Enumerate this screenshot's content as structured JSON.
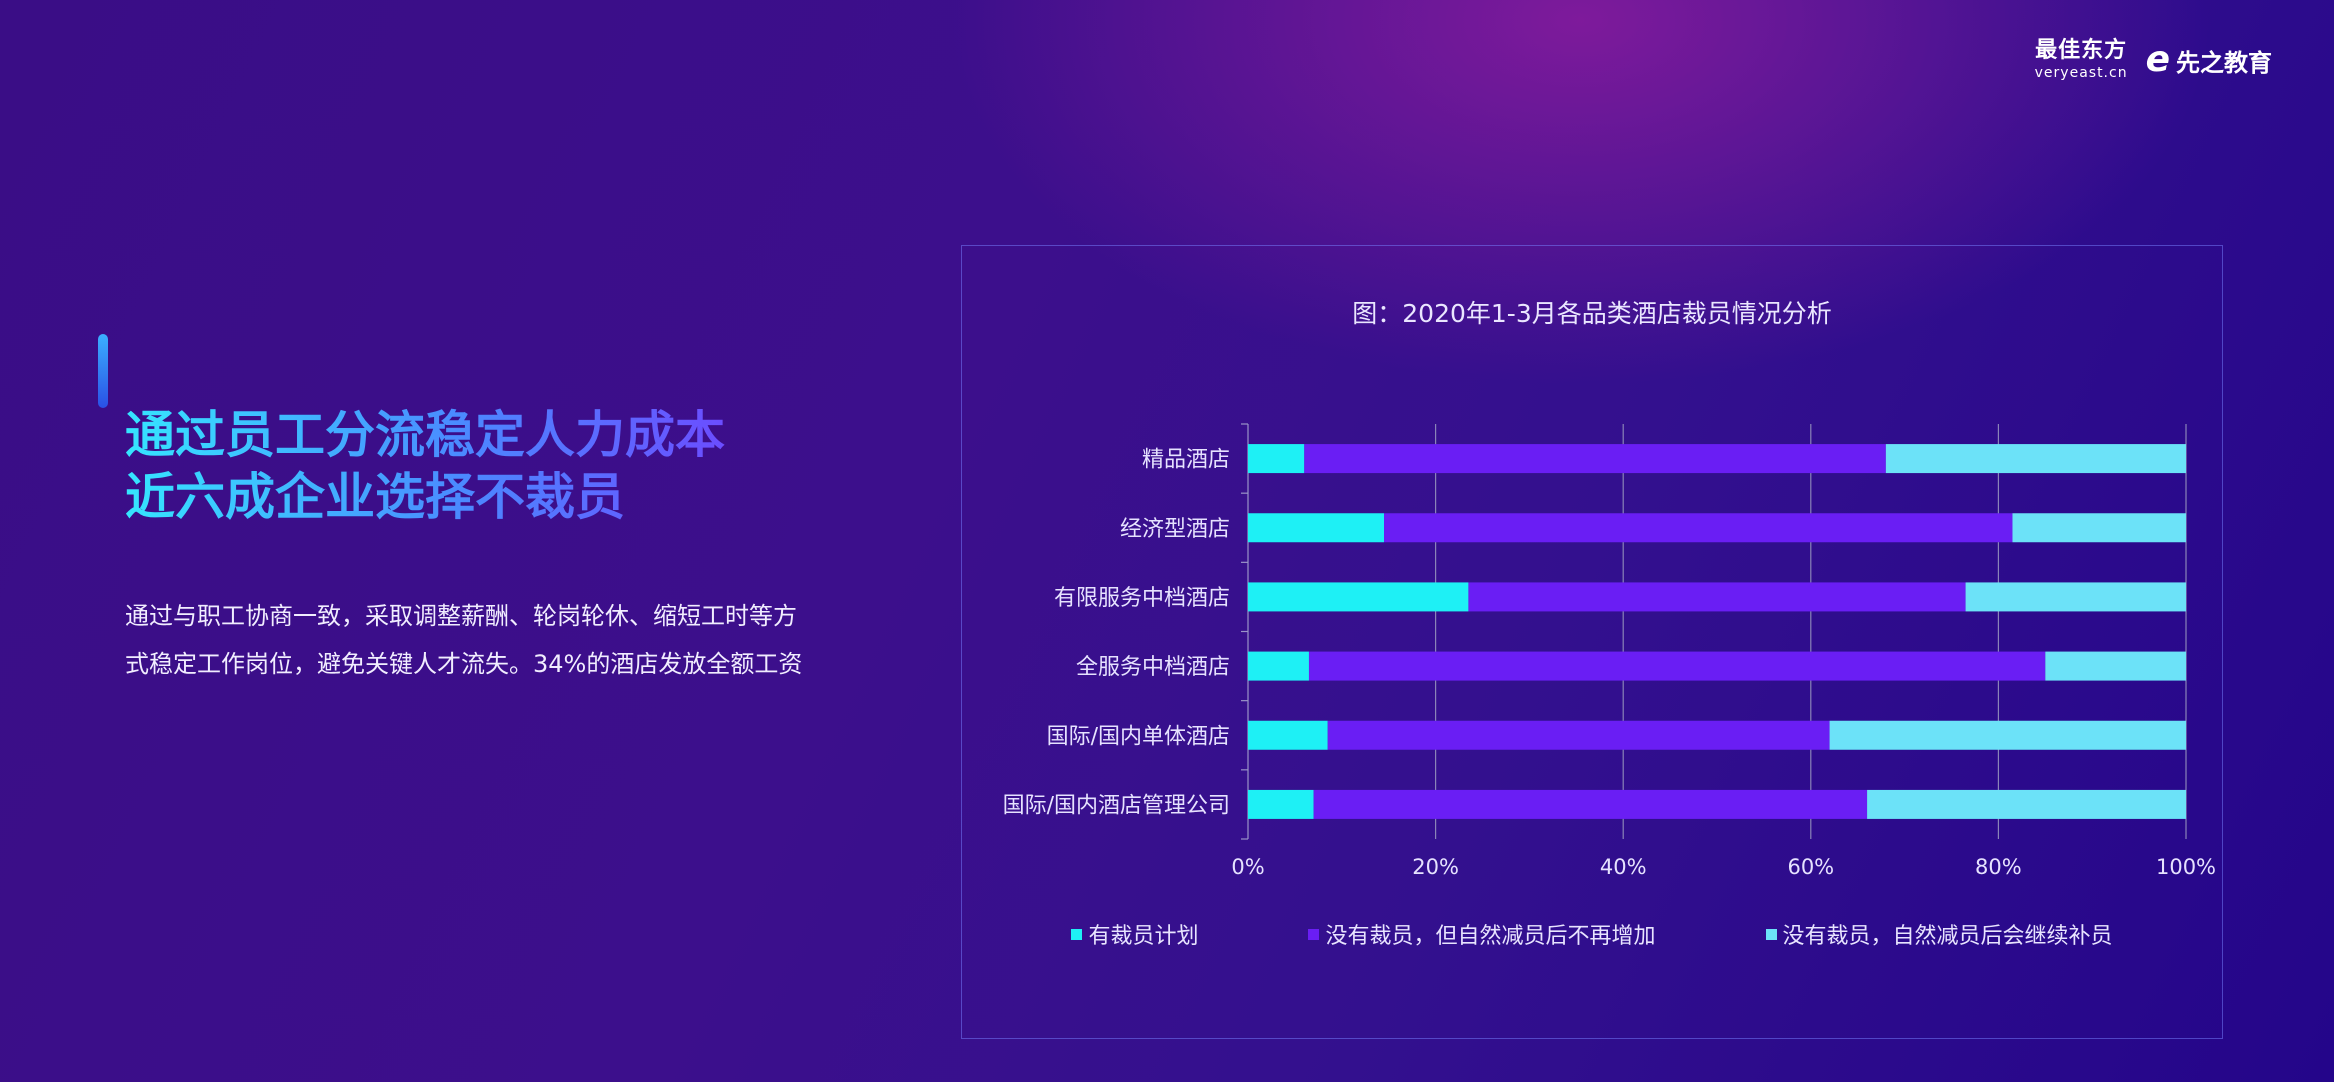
{
  "logo": {
    "brand1_cn": "最佳东方",
    "brand1_en": "veryeast.cn",
    "brand2_mark": "e",
    "brand2_text": "先之教育"
  },
  "headline": {
    "line1": "通过员工分流稳定人力成本",
    "line2": "近六成企业选择不裁员"
  },
  "body": {
    "line1": "通过与职工协商一致，采取调整薪酬、轮岗轮休、缩短工时等方",
    "line2": "式稳定工作岗位，避免关键人才流失。34%的酒店发放全额工资"
  },
  "chart_data": {
    "type": "bar",
    "orientation": "horizontal",
    "stacked": true,
    "title": "图：2020年1-3月各品类酒店裁员情况分析",
    "categories": [
      "精品酒店",
      "经济型酒店",
      "有限服务中档酒店",
      "全服务中档酒店",
      "国际/国内单体酒店",
      "国际/国内酒店管理公司"
    ],
    "series": [
      {
        "name": "有裁员计划",
        "color": "#1ef0f5",
        "values": [
          6,
          14.5,
          23.5,
          6.5,
          8.5,
          7
        ]
      },
      {
        "name": "没有裁员，但自然减员后不再增加",
        "color": "#6a1ef4",
        "values": [
          62,
          67,
          53,
          78.5,
          53.5,
          59
        ]
      },
      {
        "name": "没有裁员，自然减员后会继续补员",
        "color": "#6ce2f8",
        "values": [
          32,
          18.5,
          23.5,
          15,
          38,
          34
        ]
      }
    ],
    "xlim": [
      0,
      100
    ],
    "xticks": [
      "0%",
      "20%",
      "40%",
      "60%",
      "80%",
      "100%"
    ],
    "xlabel": "",
    "ylabel": "",
    "grid": true,
    "legend_position": "bottom"
  }
}
